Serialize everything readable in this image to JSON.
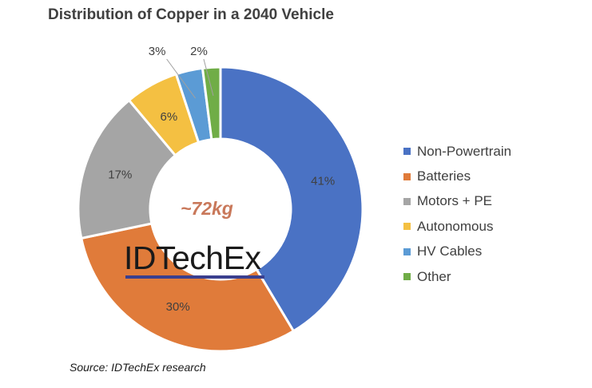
{
  "chart_data": {
    "type": "donut",
    "title": "Distribution of Copper in a 2040 Vehicle",
    "center_label": "~72kg",
    "watermark": "IDTechEx",
    "source": "Source: IDTechEx research",
    "legend_position": "right",
    "slices": [
      {
        "name": "Non-Powertrain",
        "value": 41,
        "label": "41%",
        "color": "#4a72c4"
      },
      {
        "name": "Batteries",
        "value": 30,
        "label": "30%",
        "color": "#e07b3a"
      },
      {
        "name": "Motors + PE",
        "value": 17,
        "label": "17%",
        "color": "#a5a5a5"
      },
      {
        "name": "Autonomous",
        "value": 6,
        "label": "6%",
        "color": "#f4c042"
      },
      {
        "name": "HV Cables",
        "value": 3,
        "label": "3%",
        "color": "#5b9bd5"
      },
      {
        "name": "Other",
        "value": 2,
        "label": "2%",
        "color": "#70ad47"
      }
    ]
  }
}
